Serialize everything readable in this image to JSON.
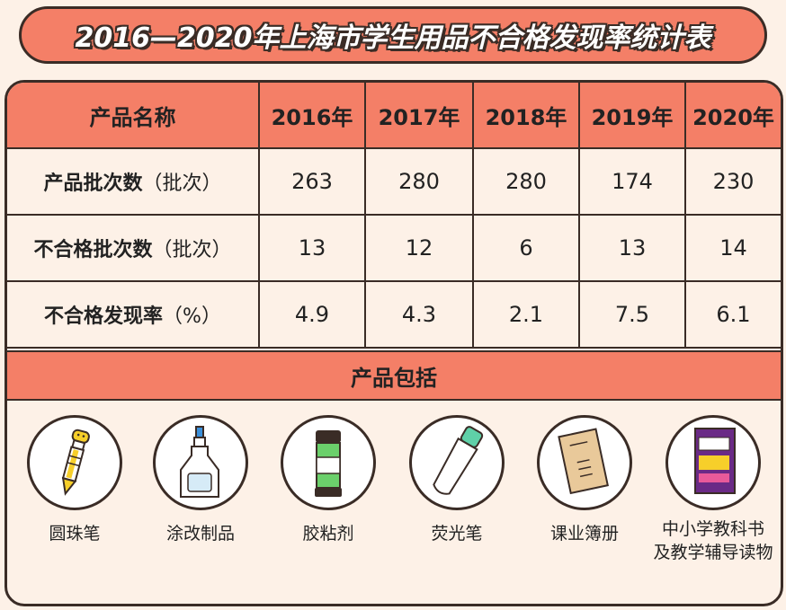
{
  "title": "2016—2020年上海市学生用品不合格发现率统计表",
  "table": {
    "header": [
      "产品名称",
      "2016年",
      "2017年",
      "2018年",
      "2019年",
      "2020年"
    ],
    "rows": [
      {
        "label": "产品批次数",
        "unit": "（批次）",
        "values": [
          "263",
          "280",
          "280",
          "174",
          "230"
        ]
      },
      {
        "label": "不合格批次数",
        "unit": "（批次）",
        "values": [
          "13",
          "12",
          "6",
          "13",
          "14"
        ]
      },
      {
        "label": "不合格发现率",
        "unit": "（%）",
        "values": [
          "4.9",
          "4.3",
          "2.1",
          "7.5",
          "6.1"
        ]
      }
    ]
  },
  "products_section": {
    "title": "产品包括",
    "items": [
      {
        "label": "圆珠笔",
        "icon": "ballpoint-pen-icon"
      },
      {
        "label": "涂改制品",
        "icon": "correction-fluid-icon"
      },
      {
        "label": "胶粘剂",
        "icon": "glue-stick-icon"
      },
      {
        "label": "荧光笔",
        "icon": "highlighter-icon"
      },
      {
        "label": "课业簿册",
        "icon": "notebook-icon"
      },
      {
        "label": "中小学教科书",
        "label2": "及教学辅导读物",
        "icon": "textbook-icon"
      }
    ]
  },
  "colors": {
    "accent": "#f47f67",
    "background": "#fdf1e7",
    "outline": "#3a2c26"
  }
}
